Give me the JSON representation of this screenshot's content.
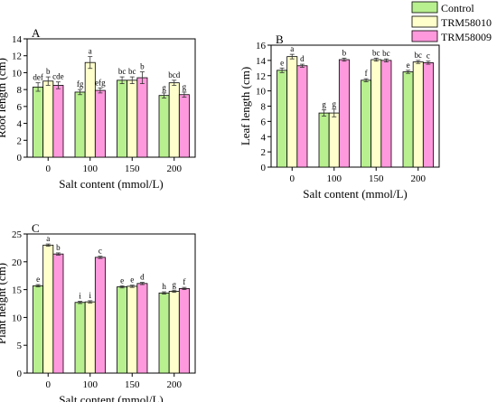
{
  "legend": {
    "placement": "top-right",
    "entries": [
      {
        "name": "Control",
        "color": "#b8ef8f"
      },
      {
        "name": "TRM58010",
        "color": "#ffffcc"
      },
      {
        "name": "TRM58009",
        "color": "#ff99dd"
      }
    ]
  },
  "chart_data": [
    {
      "type": "bar",
      "panel_label": "A",
      "xlabel": "Salt content (mmol/L)",
      "ylabel": "Root length (cm)",
      "categories": [
        "0",
        "100",
        "150",
        "200"
      ],
      "ylim": [
        0,
        14
      ],
      "yticks": [
        0,
        2,
        4,
        6,
        8,
        10,
        12,
        14
      ],
      "grid": false,
      "series": [
        {
          "name": "Control",
          "values": [
            8.3,
            7.7,
            9.1,
            7.3
          ],
          "errors": [
            0.5,
            0.3,
            0.4,
            0.3
          ],
          "letters": [
            "def",
            "fg",
            "bc",
            "g"
          ]
        },
        {
          "name": "TRM58010",
          "values": [
            9.0,
            11.2,
            9.1,
            8.8
          ],
          "errors": [
            0.5,
            0.7,
            0.4,
            0.3
          ],
          "letters": [
            "b",
            "a",
            "bc",
            "bcd"
          ]
        },
        {
          "name": "TRM58009",
          "values": [
            8.5,
            7.9,
            9.4,
            7.4
          ],
          "errors": [
            0.4,
            0.3,
            0.7,
            0.3
          ],
          "letters": [
            "cde",
            "efg",
            "b",
            "g"
          ]
        }
      ]
    },
    {
      "type": "bar",
      "panel_label": "B",
      "xlabel": "Salt content (mmol/L)",
      "ylabel": "Leaf length (cm)",
      "categories": [
        "0",
        "100",
        "150",
        "200"
      ],
      "ylim": [
        0,
        16
      ],
      "yticks": [
        0,
        2,
        4,
        6,
        8,
        10,
        12,
        14,
        16
      ],
      "grid": false,
      "series": [
        {
          "name": "Control",
          "values": [
            12.7,
            7.1,
            11.4,
            12.5
          ],
          "errors": [
            0.3,
            0.4,
            0.2,
            0.2
          ],
          "letters": [
            "e",
            "g",
            "f",
            "e"
          ]
        },
        {
          "name": "TRM58010",
          "values": [
            14.5,
            7.1,
            14.1,
            13.8
          ],
          "errors": [
            0.3,
            0.5,
            0.2,
            0.2
          ],
          "letters": [
            "a",
            "g",
            "bc",
            "bc"
          ]
        },
        {
          "name": "TRM58009",
          "values": [
            13.3,
            14.1,
            14.0,
            13.7
          ],
          "errors": [
            0.2,
            0.2,
            0.2,
            0.2
          ],
          "letters": [
            "d",
            "b",
            "bc",
            "c"
          ]
        }
      ]
    },
    {
      "type": "bar",
      "panel_label": "C",
      "xlabel": "Salt content (mmol/L)",
      "ylabel": "Plant height (cm)",
      "categories": [
        "0",
        "100",
        "150",
        "200"
      ],
      "ylim": [
        0,
        25
      ],
      "yticks": [
        0,
        5,
        10,
        15,
        20,
        25
      ],
      "grid": false,
      "series": [
        {
          "name": "Control",
          "values": [
            15.7,
            12.7,
            15.5,
            14.4
          ],
          "errors": [
            0.2,
            0.2,
            0.2,
            0.2
          ],
          "letters": [
            "e",
            "i",
            "e",
            "h"
          ]
        },
        {
          "name": "TRM58010",
          "values": [
            23.0,
            12.8,
            15.6,
            14.7
          ],
          "errors": [
            0.2,
            0.2,
            0.2,
            0.2
          ],
          "letters": [
            "a",
            "i",
            "e",
            "g"
          ]
        },
        {
          "name": "TRM58009",
          "values": [
            21.4,
            20.8,
            16.1,
            15.2
          ],
          "errors": [
            0.2,
            0.2,
            0.2,
            0.2
          ],
          "letters": [
            "b",
            "c",
            "d",
            "f"
          ]
        }
      ]
    }
  ]
}
